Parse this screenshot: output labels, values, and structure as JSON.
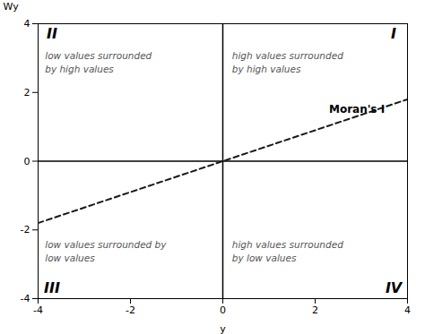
{
  "chart_data": {
    "type": "line",
    "xlabel": "y",
    "ylabel": "Wy",
    "x": [
      -4,
      4
    ],
    "values": [
      -1.8,
      1.8
    ],
    "color": "#1a1a1a",
    "line_style": "dashed",
    "xlim": [
      -4,
      4
    ],
    "ylim": [
      -4,
      4
    ],
    "xticks": [
      -4,
      -2,
      0,
      2,
      4
    ],
    "yticks": [
      -4,
      -2,
      0,
      2,
      4
    ],
    "grid": false,
    "zero_lines": {
      "x": 0,
      "y": 0
    },
    "moran_label": {
      "x": 2.3,
      "y": 1.4,
      "text": "Moran's I"
    },
    "quadrant_labels": [
      {
        "x": 3.7,
        "y": 3.7,
        "text": "I"
      },
      {
        "x": -3.7,
        "y": 3.7,
        "text": "II"
      },
      {
        "x": -3.7,
        "y": -3.7,
        "text": "III"
      },
      {
        "x": 3.7,
        "y": -3.7,
        "text": "IV"
      }
    ],
    "quadrant_text": [
      {
        "x": 0.2,
        "y": 3.6,
        "text": "high values surrounded\nby high values"
      },
      {
        "x": -3.85,
        "y": 3.6,
        "text": "low values surrounded\nby high values"
      },
      {
        "x": -3.85,
        "y": -1.9,
        "text": "low values surrounded by\nlow values"
      },
      {
        "x": 0.2,
        "y": -1.9,
        "text": "high values surrounded\nby low values"
      }
    ]
  }
}
